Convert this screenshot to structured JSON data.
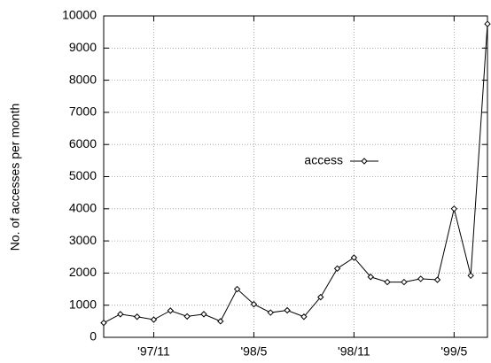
{
  "chart_data": {
    "type": "line",
    "ylabel": "No. of accesses per month",
    "categories": [
      null,
      null,
      null,
      "'97/11",
      null,
      null,
      null,
      null,
      null,
      "'98/5",
      null,
      null,
      null,
      null,
      null,
      "'98/11",
      null,
      null,
      null,
      null,
      null,
      "'99/5",
      null,
      null
    ],
    "series": [
      {
        "name": "access",
        "color": "#000000",
        "values": [
          450,
          720,
          640,
          550,
          830,
          650,
          720,
          500,
          1500,
          1030,
          770,
          840,
          640,
          1250,
          2140,
          2480,
          1880,
          1720,
          1720,
          1820,
          1790,
          4000,
          1920,
          9750
        ]
      }
    ],
    "ylim": [
      0,
      10000
    ],
    "yticks": [
      0,
      1000,
      2000,
      3000,
      4000,
      5000,
      6000,
      7000,
      8000,
      9000,
      10000
    ],
    "grid": true,
    "legend": "right"
  }
}
